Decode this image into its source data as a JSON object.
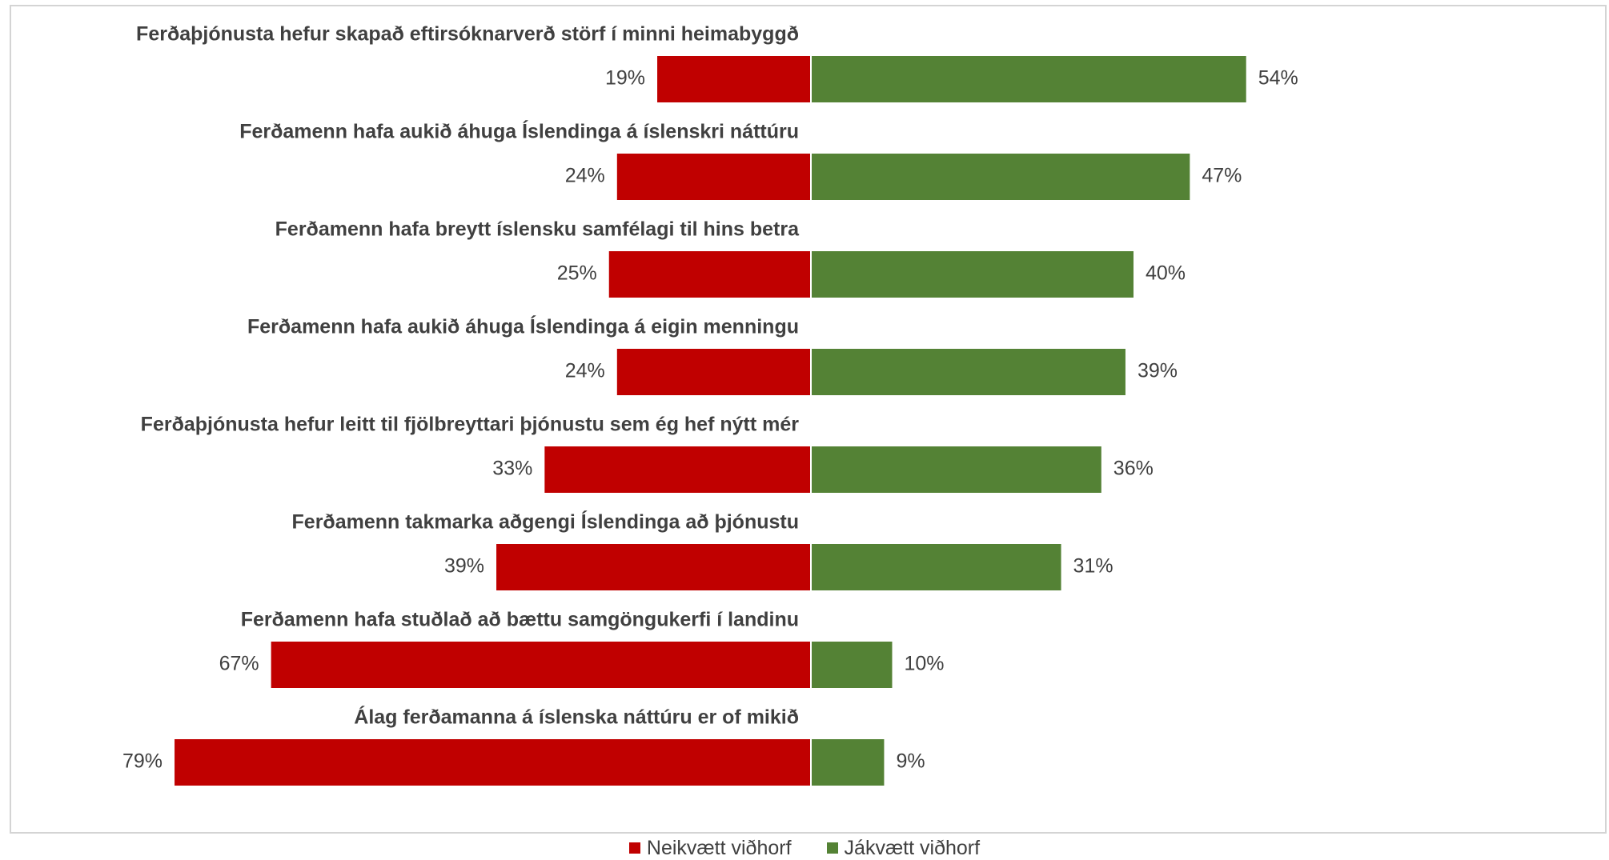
{
  "chart_data": {
    "type": "bar",
    "orientation": "horizontal-diverging",
    "title": "",
    "xlabel": "",
    "ylabel": "",
    "value_format": "percent",
    "grid": false,
    "legend_position": "bottom",
    "categories": [
      "Ferðaþjónusta hefur skapað eftirsóknarverð störf í minni heimabyggð",
      "Ferðamenn hafa aukið áhuga Íslendinga á íslenskri náttúru",
      "Ferðamenn hafa breytt íslensku samfélagi til hins betra",
      "Ferðamenn hafa aukið áhuga Íslendinga á eigin menningu",
      "Ferðaþjónusta hefur leitt til fjölbreyttari þjónustu sem ég hef nýtt mér",
      "Ferðamenn takmarka aðgengi Íslendinga að þjónustu",
      "Ferðamenn hafa stuðlað að bættu samgöngukerfi í landinu",
      "Álag ferðamanna á íslenska náttúru er of mikið"
    ],
    "series": [
      {
        "name": "Neikvætt viðhorf",
        "color": "#c00000",
        "values": [
          19,
          24,
          25,
          24,
          33,
          39,
          67,
          79
        ]
      },
      {
        "name": "Jákvætt viðhorf",
        "color": "#548235",
        "values": [
          54,
          47,
          40,
          39,
          36,
          31,
          10,
          9
        ]
      }
    ]
  }
}
